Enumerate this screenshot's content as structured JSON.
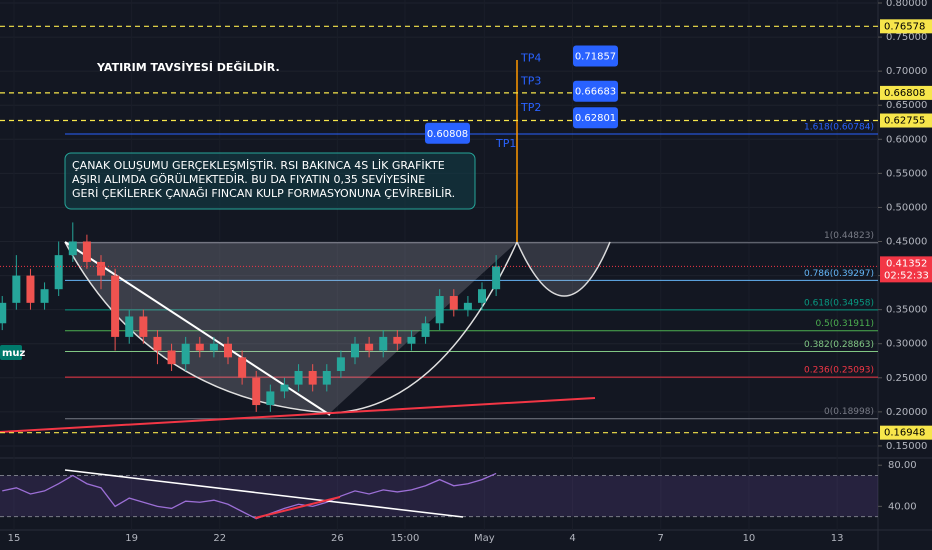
{
  "chart_data": {
    "type": "candlestick",
    "note": "YATIRIM TAVSİYESİ DEĞİLDİR.",
    "comment_lines": [
      "ÇANAK OLUŞUMU GERÇEKLEŞMİŞTİR. RSI BAKINCA 4S LİK GRAFİKTE",
      "AŞIRI ALIMDA GÖRÜLMEKTEDİR. BU DA FIYATIN 0,35 SEVİYESİNE",
      "GERİ ÇEKİLEREK ÇANAĞI FINCAN KULP FORMASYONUNA ÇEVİREBİLİR."
    ],
    "watermark": "muz",
    "x": [
      -0.4,
      0.08,
      0.56,
      1.04,
      1.52,
      2.0,
      2.48,
      2.96,
      3.44,
      3.92,
      4.4,
      4.88,
      5.36,
      5.84,
      6.32,
      6.8,
      7.28,
      7.76,
      8.24,
      8.72,
      9.2,
      9.68,
      10.16,
      10.64,
      11.12,
      11.6,
      12.08,
      12.56,
      13.04,
      13.52,
      14.0,
      14.48,
      14.96,
      15.44,
      15.92,
      16.4
    ],
    "open": [
      0.33,
      0.36,
      0.4,
      0.36,
      0.38,
      0.43,
      0.45,
      0.42,
      0.4,
      0.31,
      0.34,
      0.31,
      0.29,
      0.27,
      0.3,
      0.29,
      0.3,
      0.28,
      0.25,
      0.21,
      0.23,
      0.24,
      0.26,
      0.24,
      0.26,
      0.28,
      0.3,
      0.29,
      0.31,
      0.3,
      0.31,
      0.33,
      0.37,
      0.35,
      0.36,
      0.38
    ],
    "high": [
      0.37,
      0.43,
      0.41,
      0.39,
      0.45,
      0.478,
      0.46,
      0.43,
      0.41,
      0.35,
      0.35,
      0.32,
      0.3,
      0.31,
      0.31,
      0.31,
      0.31,
      0.29,
      0.26,
      0.24,
      0.25,
      0.27,
      0.27,
      0.27,
      0.29,
      0.31,
      0.31,
      0.32,
      0.32,
      0.32,
      0.34,
      0.38,
      0.38,
      0.37,
      0.39,
      0.43
    ],
    "low": [
      0.32,
      0.35,
      0.35,
      0.35,
      0.37,
      0.42,
      0.41,
      0.38,
      0.29,
      0.3,
      0.3,
      0.27,
      0.26,
      0.26,
      0.28,
      0.28,
      0.27,
      0.24,
      0.2,
      0.2,
      0.22,
      0.23,
      0.23,
      0.23,
      0.25,
      0.27,
      0.28,
      0.28,
      0.29,
      0.29,
      0.3,
      0.32,
      0.34,
      0.34,
      0.35,
      0.37
    ],
    "close": [
      0.36,
      0.4,
      0.36,
      0.38,
      0.43,
      0.45,
      0.42,
      0.4,
      0.31,
      0.34,
      0.31,
      0.29,
      0.27,
      0.3,
      0.29,
      0.3,
      0.28,
      0.25,
      0.21,
      0.23,
      0.24,
      0.26,
      0.24,
      0.26,
      0.28,
      0.3,
      0.29,
      0.31,
      0.3,
      0.31,
      0.33,
      0.37,
      0.35,
      0.36,
      0.38,
      0.41352
    ],
    "up_color": "#26a69a",
    "down_color": "#ef5350",
    "xlim": [
      -0.476,
      29.39
    ],
    "xticks": [
      {
        "value": 0,
        "label": "15"
      },
      {
        "value": 4,
        "label": "19"
      },
      {
        "value": 7,
        "label": "22"
      },
      {
        "value": 11,
        "label": "26"
      },
      {
        "value": 13.3,
        "label": "15:00"
      },
      {
        "value": 16,
        "label": "May"
      },
      {
        "value": 19,
        "label": "4"
      },
      {
        "value": 22,
        "label": "7"
      },
      {
        "value": 25,
        "label": "10"
      },
      {
        "value": 28,
        "label": "13"
      }
    ],
    "ylim": [
      0.1323,
      0.8044
    ],
    "yticks": [
      {
        "value": 0.8,
        "label": "0.80000"
      },
      {
        "value": 0.75,
        "label": "0.75000"
      },
      {
        "value": 0.7,
        "label": "0.70000"
      },
      {
        "value": 0.65,
        "label": "0.65000"
      },
      {
        "value": 0.6,
        "label": "0.60000"
      },
      {
        "value": 0.55,
        "label": "0.55000"
      },
      {
        "value": 0.5,
        "label": "0.50000"
      },
      {
        "value": 0.45,
        "label": "0.45000"
      },
      {
        "value": 0.4,
        "label": "0.40000"
      },
      {
        "value": 0.35,
        "label": "0.35000"
      },
      {
        "value": 0.3,
        "label": "0.30000"
      },
      {
        "value": 0.25,
        "label": "0.25000"
      },
      {
        "value": 0.2,
        "label": "0.20000"
      },
      {
        "value": 0.15,
        "label": "0.15000"
      }
    ],
    "grid": true,
    "fib_levels": [
      {
        "label": "1.618(0.60784)",
        "value": 0.60784,
        "color": "#2962ff"
      },
      {
        "label": "1(0.44823)",
        "value": 0.44823,
        "color": "#787b86"
      },
      {
        "label": "0.786(0.39297)",
        "value": 0.39297,
        "color": "#64b5f6"
      },
      {
        "label": "0.618(0.34958)",
        "value": 0.34958,
        "color": "#089981"
      },
      {
        "label": "0.5(0.31911)",
        "value": 0.31911,
        "color": "#4caf50"
      },
      {
        "label": "0.382(0.28863)",
        "value": 0.28863,
        "color": "#81c784"
      },
      {
        "label": "0.236(0.25093)",
        "value": 0.25093,
        "color": "#f23645"
      },
      {
        "label": "0(0.18998)",
        "value": 0.18998,
        "color": "#787b86"
      }
    ],
    "price_lines": [
      {
        "value": 0.76578,
        "color": "#f7e64b"
      },
      {
        "value": 0.66808,
        "color": "#f7e64b"
      },
      {
        "value": 0.62755,
        "color": "#f7e64b"
      },
      {
        "value": 0.16948,
        "color": "#f7e64b"
      }
    ],
    "current_price": {
      "value": 0.41352,
      "countdown": "02:52:33",
      "color": "#f23645"
    },
    "targets": [
      {
        "name": "TP4",
        "value": 0.71857
      },
      {
        "name": "TP3",
        "value": 0.66683
      },
      {
        "name": "TP2",
        "value": 0.62801
      },
      {
        "name": "TP1",
        "value": 0.60808
      }
    ],
    "target_color": "#2962ff",
    "rsi": {
      "values": [
        55,
        58,
        52,
        55,
        62,
        70,
        62,
        58,
        40,
        48,
        44,
        40,
        38,
        45,
        44,
        46,
        42,
        35,
        28,
        33,
        38,
        42,
        40,
        44,
        50,
        55,
        52,
        56,
        54,
        56,
        60,
        66,
        60,
        62,
        66,
        72
      ],
      "color": "#9c6fd6",
      "ylim": [
        17,
        87
      ],
      "yticks": [
        {
          "value": 80,
          "label": "80.00"
        },
        {
          "value": 40,
          "label": "40.00"
        }
      ],
      "bands": [
        70,
        30
      ]
    }
  }
}
